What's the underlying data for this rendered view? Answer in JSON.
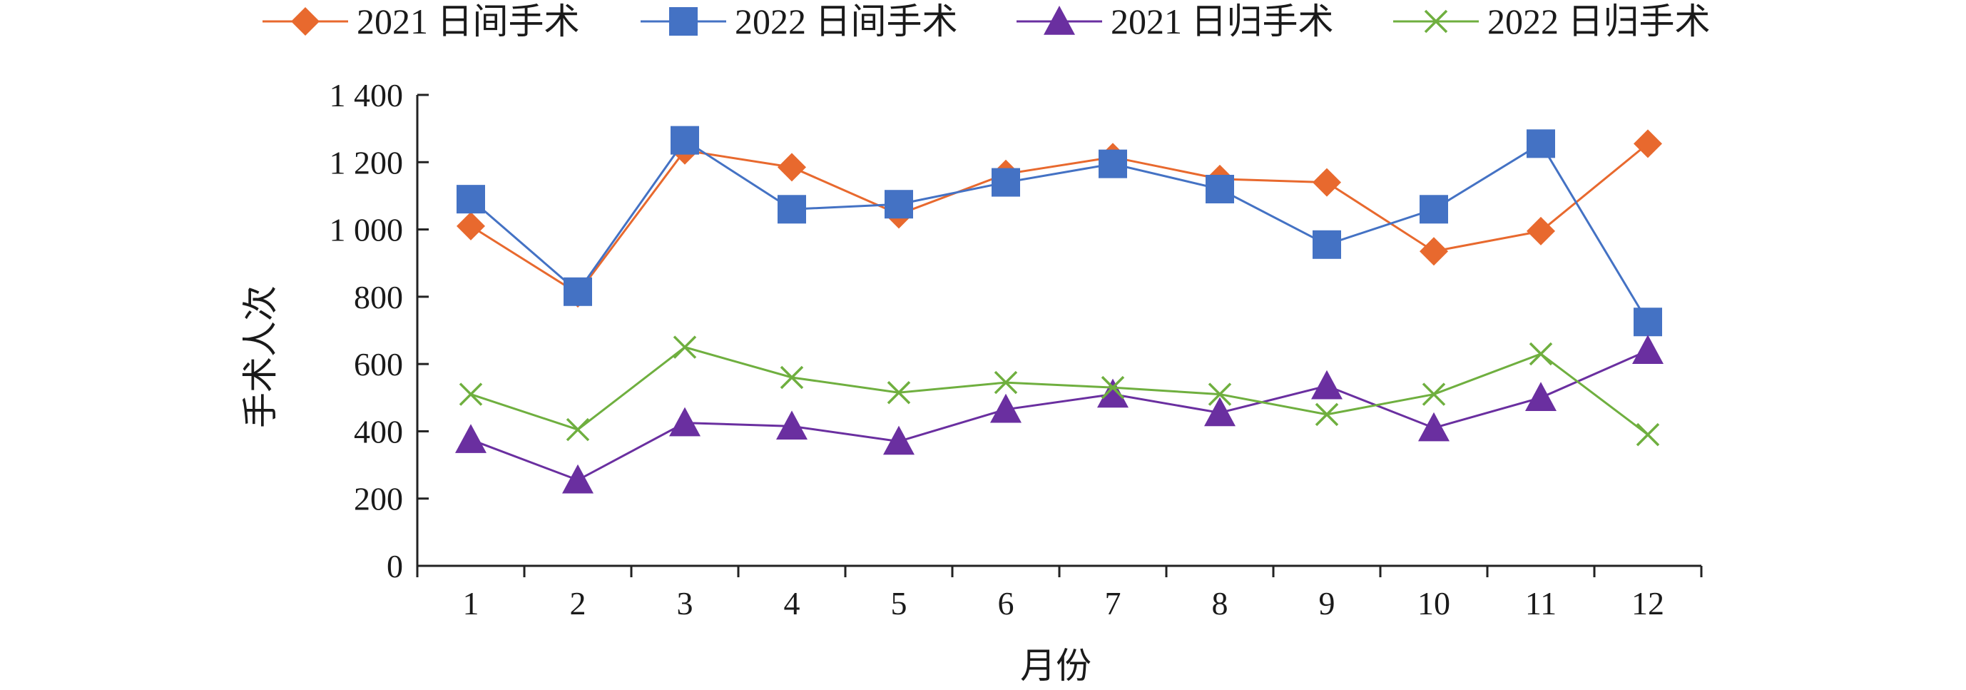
{
  "chart_data": {
    "type": "line",
    "x": [
      "1",
      "2",
      "3",
      "4",
      "5",
      "6",
      "7",
      "8",
      "9",
      "10",
      "11",
      "12"
    ],
    "xlabel": "月份",
    "ylabel": "手术人次",
    "ylim": [
      0,
      1400
    ],
    "yticks": [
      0,
      200,
      400,
      600,
      800,
      1000,
      1200,
      1400
    ],
    "ytick_labels": [
      "0",
      "200",
      "400",
      "600",
      "800",
      "1 000",
      "1 200",
      "1 400"
    ],
    "grid": false,
    "legend": "top",
    "series": [
      {
        "name": "2021 日间手术",
        "marker": "diamond",
        "color": "#E8692E",
        "values": [
          1010,
          810,
          1235,
          1185,
          1045,
          1165,
          1215,
          1150,
          1140,
          935,
          995,
          1255
        ]
      },
      {
        "name": "2022 日间手术",
        "marker": "square",
        "color": "#4472C4",
        "values": [
          1090,
          815,
          1265,
          1060,
          1075,
          1140,
          1195,
          1120,
          955,
          1060,
          1255,
          725
        ]
      },
      {
        "name": "2021 日归手术",
        "marker": "triangle",
        "color": "#6A2FA0",
        "values": [
          375,
          255,
          425,
          415,
          370,
          465,
          510,
          455,
          535,
          410,
          500,
          640
        ]
      },
      {
        "name": "2022 日归手术",
        "marker": "x",
        "color": "#6FAF3F",
        "values": [
          510,
          405,
          650,
          560,
          515,
          545,
          530,
          510,
          450,
          510,
          630,
          390
        ]
      }
    ]
  }
}
